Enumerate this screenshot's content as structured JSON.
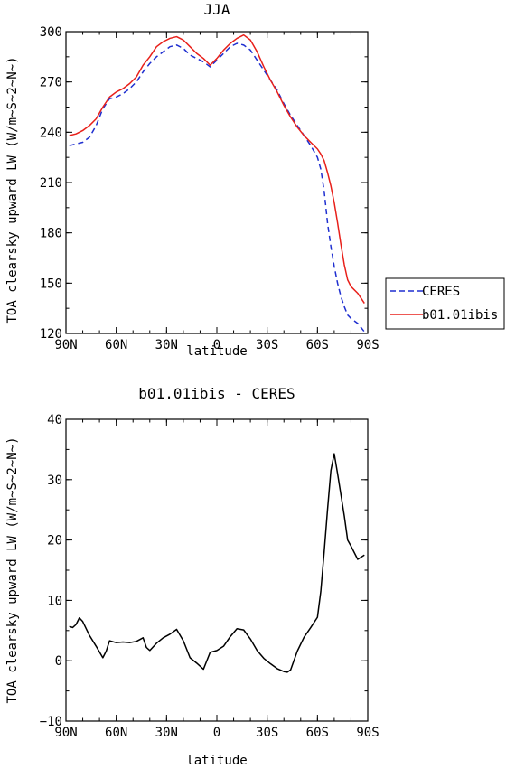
{
  "chart_data": [
    {
      "type": "line",
      "title": "JJA",
      "xlabel": "latitude",
      "ylabel": "TOA clearsky upward LW (W/m~S~2~N~)",
      "x_ticks": [
        {
          "lat": 90,
          "label": "90N"
        },
        {
          "lat": 60,
          "label": "60N"
        },
        {
          "lat": 30,
          "label": "30N"
        },
        {
          "lat": 0,
          "label": "0"
        },
        {
          "lat": -30,
          "label": "30S"
        },
        {
          "lat": -60,
          "label": "60S"
        },
        {
          "lat": -90,
          "label": "90S"
        }
      ],
      "xlim": [
        90,
        -90
      ],
      "ylim": [
        120,
        300
      ],
      "y_ticks": [
        120,
        150,
        180,
        210,
        240,
        270,
        300
      ],
      "legend_position": "right",
      "series": [
        {
          "name": "CERES",
          "color": "#1f2fd0",
          "dash": "dashed",
          "x": [
            88,
            84,
            80,
            76,
            72,
            68,
            64,
            60,
            56,
            52,
            48,
            44,
            40,
            36,
            32,
            28,
            24,
            20,
            16,
            12,
            8,
            4,
            0,
            -4,
            -8,
            -12,
            -16,
            -20,
            -24,
            -28,
            -32,
            -36,
            -40,
            -44,
            -48,
            -52,
            -56,
            -60,
            -62,
            -64,
            -66,
            -68,
            -70,
            -72,
            -74,
            -76,
            -78,
            -80,
            -84,
            -88
          ],
          "y": [
            232,
            233,
            234,
            237,
            244,
            254,
            260,
            261,
            263,
            266,
            270,
            276,
            281,
            285,
            288,
            291,
            292,
            290,
            286,
            284,
            282,
            279,
            283,
            287,
            291,
            293,
            292,
            289,
            283,
            277,
            271,
            265,
            257,
            250,
            244,
            238,
            232,
            225,
            218,
            205,
            186,
            172,
            160,
            150,
            142,
            136,
            131,
            129,
            126,
            121
          ]
        },
        {
          "name": "b01.01ibis",
          "color": "#e8201a",
          "dash": "solid",
          "x": [
            88,
            84,
            80,
            76,
            72,
            68,
            64,
            60,
            56,
            52,
            48,
            44,
            40,
            36,
            32,
            28,
            24,
            20,
            16,
            12,
            8,
            4,
            0,
            -4,
            -8,
            -12,
            -16,
            -20,
            -24,
            -28,
            -32,
            -36,
            -40,
            -44,
            -48,
            -52,
            -56,
            -60,
            -62,
            -64,
            -66,
            -68,
            -70,
            -72,
            -74,
            -76,
            -78,
            -80,
            -84,
            -88
          ],
          "y": [
            238,
            239,
            241,
            244,
            248,
            255,
            261,
            264,
            266,
            269,
            273,
            280,
            285,
            291,
            294,
            296,
            297,
            295,
            291,
            287,
            284,
            280,
            284,
            289,
            293,
            296,
            298,
            295,
            288,
            279,
            271,
            264,
            256,
            249,
            243,
            238,
            234,
            230,
            227,
            223,
            216,
            208,
            198,
            186,
            173,
            161,
            152,
            148,
            144,
            138
          ]
        }
      ]
    },
    {
      "type": "line",
      "title": "b01.01ibis - CERES",
      "xlabel": "latitude",
      "ylabel": "TOA clearsky upward LW (W/m~S~2~N~)",
      "x_ticks": [
        {
          "lat": 90,
          "label": "90N"
        },
        {
          "lat": 60,
          "label": "60N"
        },
        {
          "lat": 30,
          "label": "30N"
        },
        {
          "lat": 0,
          "label": "0"
        },
        {
          "lat": -30,
          "label": "30S"
        },
        {
          "lat": -60,
          "label": "60S"
        },
        {
          "lat": -90,
          "label": "90S"
        }
      ],
      "xlim": [
        90,
        -90
      ],
      "ylim": [
        -10,
        40
      ],
      "y_ticks": [
        -10,
        0,
        10,
        20,
        30,
        40
      ],
      "series": [
        {
          "color": "#000000",
          "dash": "solid",
          "x": [
            88,
            86,
            84,
            82,
            80,
            76,
            72,
            68,
            66,
            64,
            60,
            56,
            52,
            48,
            44,
            42,
            40,
            36,
            32,
            28,
            24,
            20,
            16,
            12,
            8,
            4,
            0,
            -4,
            -8,
            -12,
            -16,
            -20,
            -24,
            -28,
            -32,
            -36,
            -40,
            -42,
            -44,
            -48,
            -52,
            -56,
            -60,
            -62,
            -64,
            -66,
            -68,
            -70,
            -72,
            -74,
            -76,
            -78,
            -80,
            -84,
            -88
          ],
          "y": [
            5.7,
            5.5,
            6.0,
            7.1,
            6.5,
            4.2,
            2.4,
            0.5,
            1.6,
            3.3,
            3.0,
            3.1,
            3.0,
            3.2,
            3.8,
            2.2,
            1.7,
            2.9,
            3.8,
            4.4,
            5.2,
            3.3,
            0.5,
            -0.4,
            -1.4,
            1.4,
            1.7,
            2.4,
            4.0,
            5.3,
            5.1,
            3.6,
            1.7,
            0.4,
            -0.5,
            -1.3,
            -1.8,
            -1.9,
            -1.5,
            1.6,
            3.9,
            5.5,
            7.2,
            11.5,
            18.0,
            25.0,
            31.5,
            34.3,
            31.0,
            27.5,
            24.0,
            20.0,
            19.0,
            16.8,
            17.5
          ]
        }
      ]
    }
  ]
}
